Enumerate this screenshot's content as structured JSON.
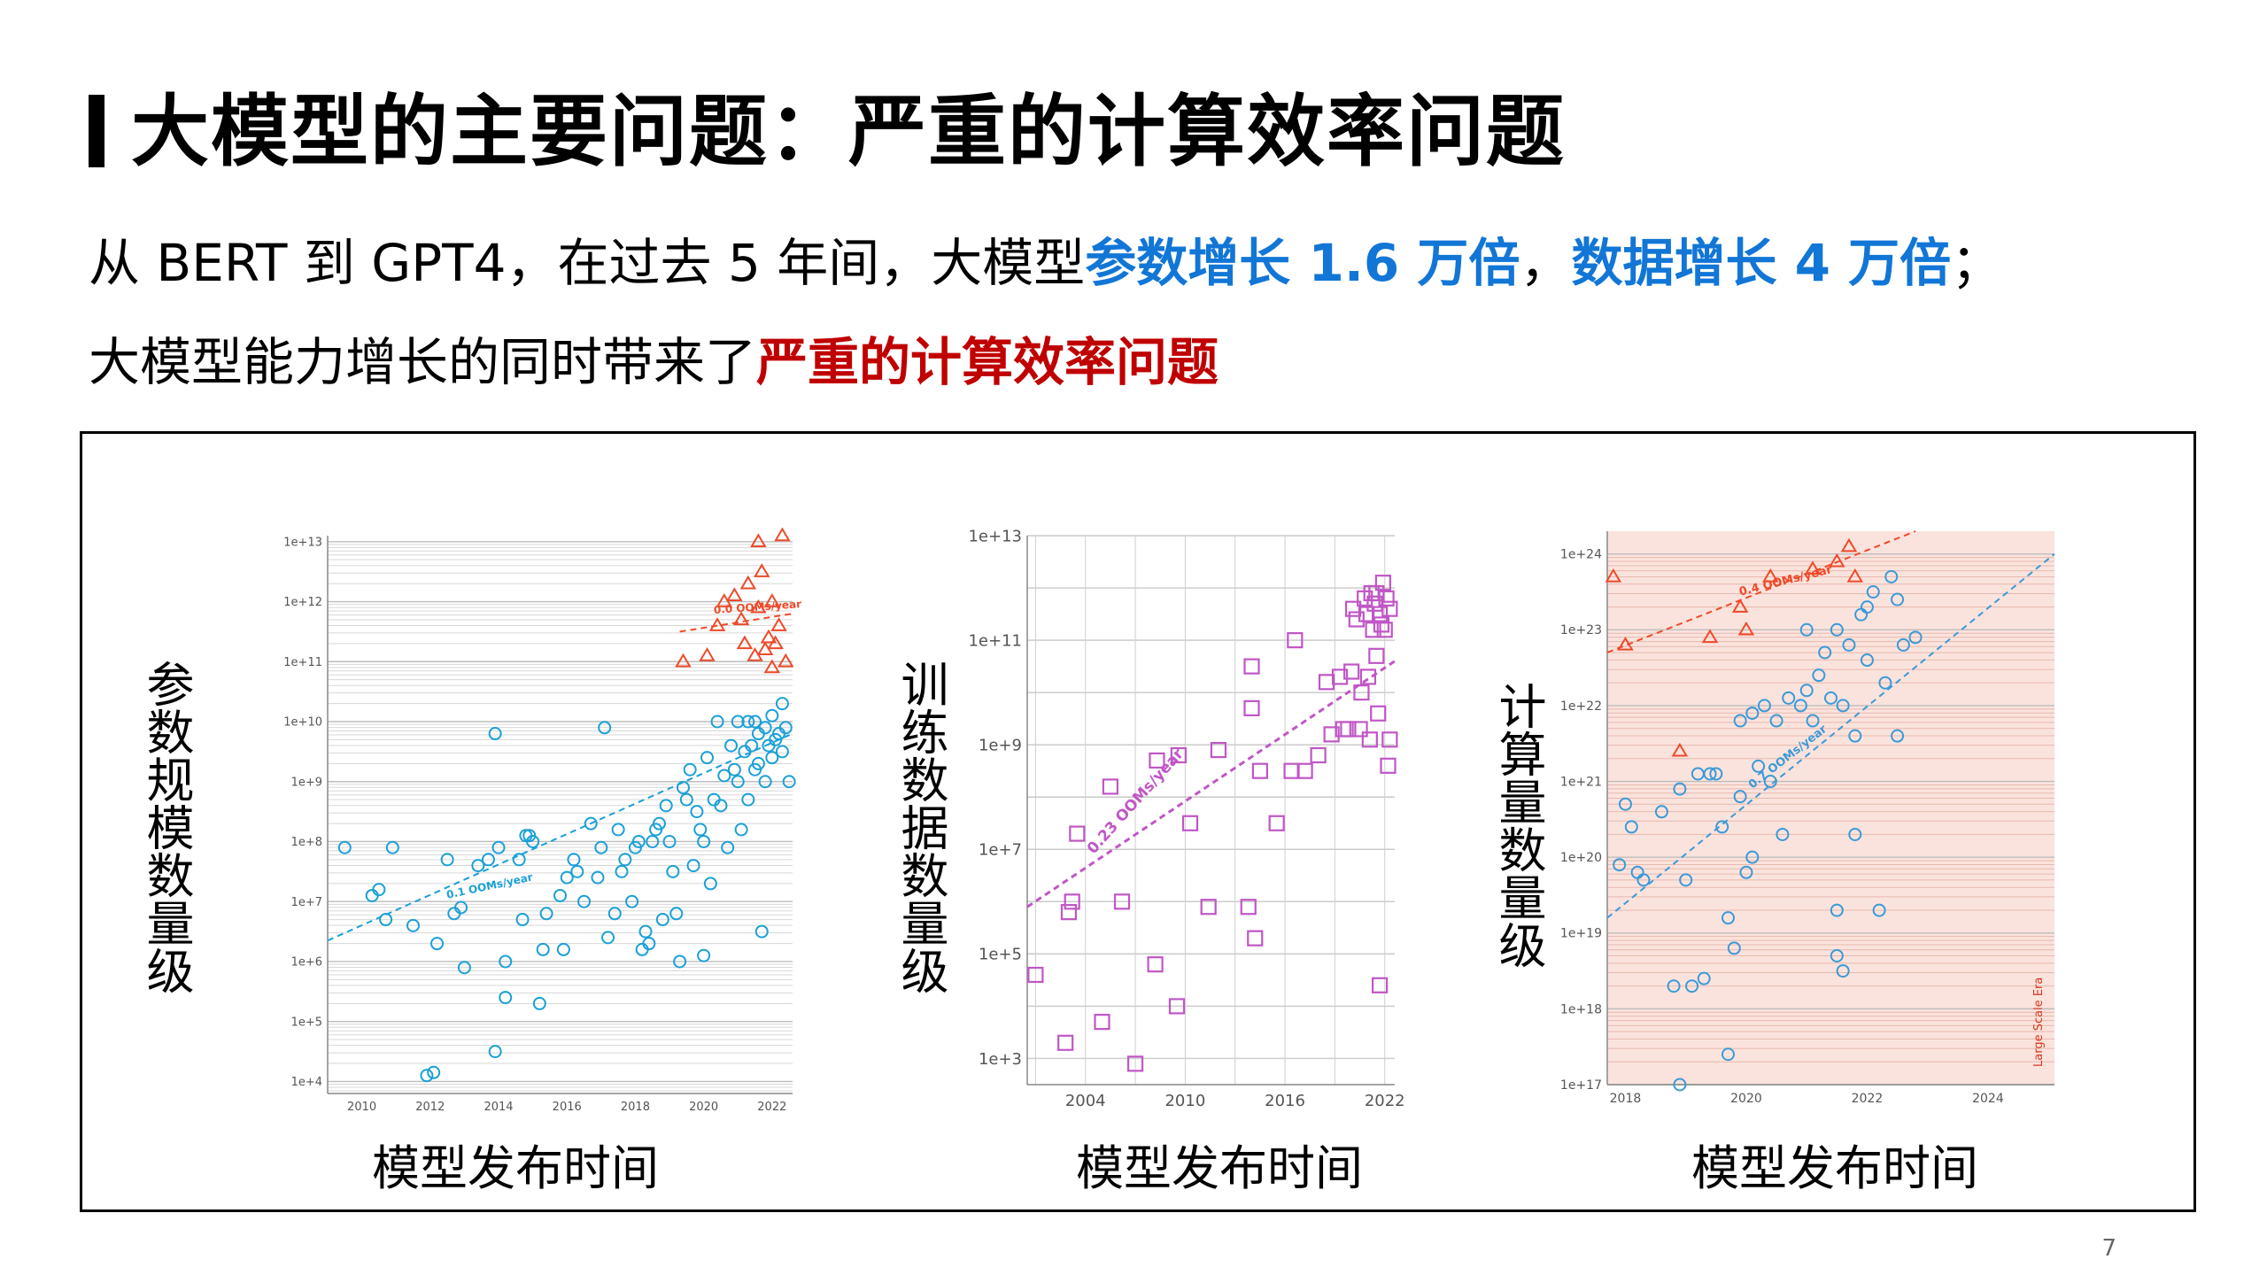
{
  "slide": {
    "title": "大模型的主要问题：严重的计算效率问题",
    "line1": {
      "pre": "从 BERT 到 GPT4，在过去 5 年间，大模型",
      "hl1": "参数增长 1.6 万倍",
      "mid": "，",
      "hl2": "数据增长 4 万倍",
      "post": "；"
    },
    "line2": {
      "pre": "大模型能力增长的同时带来了",
      "hl": "严重的计算效率问题"
    },
    "page_number": "7",
    "colors": {
      "accent_blue": "#1176d6",
      "accent_red": "#c00000"
    }
  },
  "chart_data": [
    {
      "type": "scatter",
      "ylabel": "参数规模数量级",
      "xlabel": "模型发布时间",
      "xlim": [
        2009,
        2022.6
      ],
      "ylim_log10": [
        3.8,
        13.1
      ],
      "x_ticks": [
        "2010",
        "2012",
        "2014",
        "2016",
        "2018",
        "2020",
        "2022"
      ],
      "y_ticks": [
        "1e+4",
        "1e+5",
        "1e+6",
        "1e+7",
        "1e+8",
        "1e+9",
        "1e+10",
        "1e+11",
        "1e+12",
        "1e+13"
      ],
      "trend_labels": [
        "0.1 OOMs/year",
        "0.0 OOMs/year"
      ],
      "series": [
        {
          "marker": "circle",
          "color": "#1aa0d8",
          "points": [
            [
              2009.5,
              7.9
            ],
            [
              2010.3,
              7.1
            ],
            [
              2010.5,
              7.2
            ],
            [
              2010.7,
              6.7
            ],
            [
              2010.9,
              7.9
            ],
            [
              2011.5,
              6.6
            ],
            [
              2011.9,
              4.1
            ],
            [
              2012.1,
              4.15
            ],
            [
              2012.2,
              6.3
            ],
            [
              2012.5,
              7.7
            ],
            [
              2012.7,
              6.8
            ],
            [
              2012.9,
              6.9
            ],
            [
              2013.0,
              5.9
            ],
            [
              2013.4,
              7.6
            ],
            [
              2013.7,
              7.7
            ],
            [
              2013.9,
              4.5
            ],
            [
              2013.9,
              9.8
            ],
            [
              2014.0,
              7.9
            ],
            [
              2014.2,
              6.0
            ],
            [
              2014.2,
              5.4
            ],
            [
              2014.6,
              7.7
            ],
            [
              2014.7,
              6.7
            ],
            [
              2014.8,
              8.1
            ],
            [
              2014.9,
              8.1
            ],
            [
              2015.0,
              8.0
            ],
            [
              2015.2,
              5.3
            ],
            [
              2015.3,
              6.2
            ],
            [
              2015.4,
              6.8
            ],
            [
              2015.8,
              7.1
            ],
            [
              2015.9,
              6.2
            ],
            [
              2016.0,
              7.4
            ],
            [
              2016.2,
              7.7
            ],
            [
              2016.3,
              7.5
            ],
            [
              2016.5,
              7.0
            ],
            [
              2016.7,
              8.3
            ],
            [
              2016.9,
              7.4
            ],
            [
              2017.0,
              7.9
            ],
            [
              2017.1,
              9.9
            ],
            [
              2017.2,
              6.4
            ],
            [
              2017.4,
              6.8
            ],
            [
              2017.5,
              8.2
            ],
            [
              2017.6,
              7.5
            ],
            [
              2017.7,
              7.7
            ],
            [
              2017.9,
              7.0
            ],
            [
              2018.0,
              7.9
            ],
            [
              2018.1,
              8.0
            ],
            [
              2018.2,
              6.2
            ],
            [
              2018.3,
              6.5
            ],
            [
              2018.4,
              6.3
            ],
            [
              2018.5,
              8.0
            ],
            [
              2018.6,
              8.2
            ],
            [
              2018.7,
              8.3
            ],
            [
              2018.8,
              6.7
            ],
            [
              2018.9,
              8.6
            ],
            [
              2019.0,
              8.0
            ],
            [
              2019.1,
              7.5
            ],
            [
              2019.2,
              6.8
            ],
            [
              2019.3,
              6.0
            ],
            [
              2019.4,
              8.9
            ],
            [
              2019.5,
              8.7
            ],
            [
              2019.6,
              9.2
            ],
            [
              2019.7,
              7.6
            ],
            [
              2019.8,
              8.5
            ],
            [
              2019.9,
              8.2
            ],
            [
              2020.0,
              6.1
            ],
            [
              2020.0,
              8.0
            ],
            [
              2020.1,
              9.4
            ],
            [
              2020.2,
              7.3
            ],
            [
              2020.3,
              8.7
            ],
            [
              2020.4,
              10.0
            ],
            [
              2020.5,
              8.6
            ],
            [
              2020.6,
              9.1
            ],
            [
              2020.7,
              7.9
            ],
            [
              2020.8,
              9.6
            ],
            [
              2020.9,
              9.2
            ],
            [
              2021.0,
              10.0
            ],
            [
              2021.0,
              9.0
            ],
            [
              2021.1,
              8.2
            ],
            [
              2021.2,
              9.5
            ],
            [
              2021.3,
              10.0
            ],
            [
              2021.3,
              8.7
            ],
            [
              2021.4,
              9.6
            ],
            [
              2021.5,
              9.2
            ],
            [
              2021.5,
              10.0
            ],
            [
              2021.6,
              9.8
            ],
            [
              2021.6,
              9.3
            ],
            [
              2021.7,
              6.5
            ],
            [
              2021.8,
              9.9
            ],
            [
              2021.8,
              9.0
            ],
            [
              2021.9,
              9.6
            ],
            [
              2022.0,
              10.1
            ],
            [
              2022.0,
              9.4
            ],
            [
              2022.1,
              9.7
            ],
            [
              2022.2,
              9.8
            ],
            [
              2022.3,
              10.3
            ],
            [
              2022.3,
              9.5
            ],
            [
              2022.4,
              9.9
            ],
            [
              2022.5,
              9.0
            ]
          ]
        },
        {
          "marker": "triangle",
          "color": "#ee4a2a",
          "points": [
            [
              2019.4,
              11.0
            ],
            [
              2020.1,
              11.1
            ],
            [
              2020.4,
              11.6
            ],
            [
              2020.6,
              12.0
            ],
            [
              2020.9,
              12.1
            ],
            [
              2021.1,
              11.7
            ],
            [
              2021.2,
              11.3
            ],
            [
              2021.3,
              12.3
            ],
            [
              2021.5,
              11.1
            ],
            [
              2021.6,
              11.9
            ],
            [
              2021.7,
              12.5
            ],
            [
              2021.8,
              11.2
            ],
            [
              2021.9,
              11.4
            ],
            [
              2022.0,
              12.0
            ],
            [
              2022.0,
              10.9
            ],
            [
              2022.1,
              11.3
            ],
            [
              2022.2,
              11.6
            ],
            [
              2022.3,
              13.1
            ],
            [
              2022.4,
              11.0
            ],
            [
              2021.6,
              13.0
            ]
          ]
        }
      ]
    },
    {
      "type": "scatter",
      "ylabel": "训练数据数量级",
      "xlabel": "模型发布时间",
      "xlim": [
        2000.5,
        2022.6
      ],
      "ylim_log10": [
        2.5,
        13.0
      ],
      "x_ticks": [
        "2004",
        "2010",
        "2016",
        "2022"
      ],
      "y_ticks": [
        "1e+3",
        "1e+5",
        "1e+7",
        "1e+9",
        "1e+11",
        "1e+13"
      ],
      "trend_labels": [
        "0.23 OOMs/year"
      ],
      "series": [
        {
          "marker": "square",
          "color": "#c056c6",
          "points": [
            [
              2001.0,
              4.6
            ],
            [
              2002.8,
              3.3
            ],
            [
              2003.0,
              5.8
            ],
            [
              2003.2,
              6.0
            ],
            [
              2003.5,
              7.3
            ],
            [
              2005.0,
              3.7
            ],
            [
              2005.5,
              8.2
            ],
            [
              2006.2,
              6.0
            ],
            [
              2007.0,
              2.9
            ],
            [
              2008.2,
              4.8
            ],
            [
              2008.3,
              8.7
            ],
            [
              2009.5,
              4.0
            ],
            [
              2009.6,
              8.8
            ],
            [
              2010.3,
              7.5
            ],
            [
              2011.4,
              5.9
            ],
            [
              2012.0,
              8.9
            ],
            [
              2013.8,
              5.9
            ],
            [
              2014.0,
              10.5
            ],
            [
              2014.0,
              9.7
            ],
            [
              2014.2,
              5.3
            ],
            [
              2014.5,
              8.5
            ],
            [
              2015.5,
              7.5
            ],
            [
              2016.4,
              8.5
            ],
            [
              2016.6,
              11.0
            ],
            [
              2017.2,
              8.5
            ],
            [
              2018.0,
              8.8
            ],
            [
              2018.5,
              10.2
            ],
            [
              2018.8,
              9.2
            ],
            [
              2019.3,
              10.3
            ],
            [
              2019.5,
              9.3
            ],
            [
              2019.8,
              9.3
            ],
            [
              2020.0,
              10.4
            ],
            [
              2020.1,
              11.6
            ],
            [
              2020.3,
              11.4
            ],
            [
              2020.5,
              9.3
            ],
            [
              2020.6,
              10.0
            ],
            [
              2020.8,
              11.8
            ],
            [
              2020.9,
              11.5
            ],
            [
              2021.0,
              10.3
            ],
            [
              2021.1,
              9.1
            ],
            [
              2021.2,
              11.9
            ],
            [
              2021.3,
              11.2
            ],
            [
              2021.4,
              11.7
            ],
            [
              2021.5,
              11.9
            ],
            [
              2021.5,
              10.7
            ],
            [
              2021.6,
              9.6
            ],
            [
              2021.7,
              11.5
            ],
            [
              2021.8,
              11.3
            ],
            [
              2021.9,
              12.1
            ],
            [
              2022.0,
              11.2
            ],
            [
              2022.1,
              11.8
            ],
            [
              2022.2,
              8.6
            ],
            [
              2022.3,
              11.6
            ],
            [
              2022.3,
              9.1
            ],
            [
              2021.7,
              4.4
            ]
          ]
        }
      ]
    },
    {
      "type": "scatter",
      "ylabel": "计算量数量级",
      "xlabel": "模型发布时间",
      "xlim": [
        2017.7,
        2025.1
      ],
      "ylim_log10": [
        17.0,
        24.3
      ],
      "x_ticks": [
        "2018",
        "2020",
        "2022",
        "2024"
      ],
      "y_ticks": [
        "1e+17",
        "1e+18",
        "1e+19",
        "1e+20",
        "1e+21",
        "1e+22",
        "1e+23",
        "1e+24"
      ],
      "trend_labels": [
        "0.4 OOMs/year",
        "0.7 OOMs/year"
      ],
      "region_label": "Large Scale Era",
      "series": [
        {
          "marker": "circle",
          "color": "#3a9ad8",
          "points": [
            [
              2017.9,
              19.9
            ],
            [
              2018.0,
              20.7
            ],
            [
              2018.1,
              20.4
            ],
            [
              2018.2,
              19.8
            ],
            [
              2018.3,
              19.7
            ],
            [
              2018.6,
              20.6
            ],
            [
              2018.8,
              18.3
            ],
            [
              2018.9,
              17.0
            ],
            [
              2018.9,
              20.9
            ],
            [
              2019.0,
              19.7
            ],
            [
              2019.1,
              18.3
            ],
            [
              2019.2,
              21.1
            ],
            [
              2019.3,
              18.4
            ],
            [
              2019.4,
              21.1
            ],
            [
              2019.5,
              21.1
            ],
            [
              2019.6,
              20.4
            ],
            [
              2019.7,
              19.2
            ],
            [
              2019.7,
              17.4
            ],
            [
              2019.8,
              18.8
            ],
            [
              2019.9,
              21.8
            ],
            [
              2019.9,
              20.8
            ],
            [
              2020.0,
              19.8
            ],
            [
              2020.1,
              21.9
            ],
            [
              2020.1,
              20.0
            ],
            [
              2020.2,
              21.2
            ],
            [
              2020.3,
              22.0
            ],
            [
              2020.4,
              21.0
            ],
            [
              2020.5,
              21.8
            ],
            [
              2020.6,
              20.3
            ],
            [
              2020.7,
              22.1
            ],
            [
              2020.9,
              22.0
            ],
            [
              2021.0,
              23.0
            ],
            [
              2021.0,
              22.2
            ],
            [
              2021.1,
              21.8
            ],
            [
              2021.2,
              22.4
            ],
            [
              2021.3,
              22.7
            ],
            [
              2021.4,
              22.1
            ],
            [
              2021.5,
              23.0
            ],
            [
              2021.5,
              19.3
            ],
            [
              2021.5,
              18.7
            ],
            [
              2021.6,
              18.5
            ],
            [
              2021.6,
              22.0
            ],
            [
              2021.7,
              22.8
            ],
            [
              2021.8,
              20.3
            ],
            [
              2021.8,
              21.6
            ],
            [
              2021.9,
              23.2
            ],
            [
              2022.0,
              22.6
            ],
            [
              2022.1,
              23.5
            ],
            [
              2022.2,
              19.3
            ],
            [
              2022.3,
              22.3
            ],
            [
              2022.4,
              23.7
            ],
            [
              2022.5,
              21.6
            ],
            [
              2022.6,
              22.8
            ],
            [
              2022.8,
              22.9
            ],
            [
              2022.0,
              23.3
            ],
            [
              2022.5,
              23.4
            ]
          ]
        },
        {
          "marker": "triangle",
          "color": "#ee4a2a",
          "points": [
            [
              2017.8,
              23.7
            ],
            [
              2018.0,
              22.8
            ],
            [
              2018.9,
              21.4
            ],
            [
              2019.4,
              22.9
            ],
            [
              2019.9,
              23.3
            ],
            [
              2020.0,
              23.0
            ],
            [
              2020.4,
              23.7
            ],
            [
              2021.1,
              23.8
            ],
            [
              2021.5,
              23.9
            ],
            [
              2021.7,
              24.1
            ],
            [
              2021.8,
              23.7
            ]
          ]
        }
      ]
    }
  ]
}
